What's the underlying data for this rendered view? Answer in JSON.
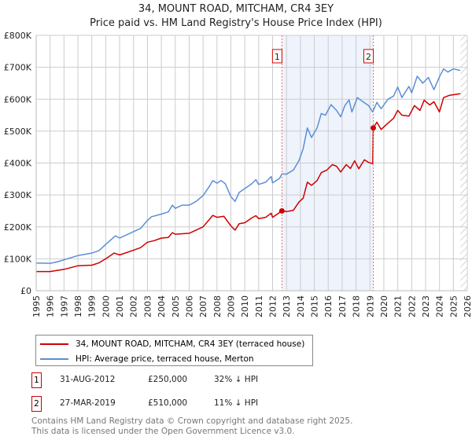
{
  "header": {
    "title": "34, MOUNT ROAD, MITCHAM, CR4 3EY",
    "subtitle": "Price paid vs. HM Land Registry's House Price Index (HPI)"
  },
  "colors": {
    "property": "#cc0000",
    "hpi": "#5b8fd6",
    "shade": "#eef3fc",
    "marker_line": "#ff6666"
  },
  "chart_data": {
    "type": "line",
    "title": "34, MOUNT ROAD, MITCHAM, CR4 3EY - Price paid vs. HM Land Registry's House Price Index (HPI)",
    "xlim": [
      1995,
      2026
    ],
    "ylim": [
      0,
      800000
    ],
    "x_ticks": [
      "1995",
      "1996",
      "1997",
      "1998",
      "1999",
      "2000",
      "2001",
      "2002",
      "2003",
      "2004",
      "2005",
      "2006",
      "2007",
      "2008",
      "2009",
      "2010",
      "2011",
      "2012",
      "2013",
      "2014",
      "2015",
      "2016",
      "2017",
      "2018",
      "2019",
      "2020",
      "2021",
      "2022",
      "2023",
      "2024",
      "2025",
      "2026"
    ],
    "y_ticks": [
      {
        "v": 0,
        "label": "£0"
      },
      {
        "v": 100000,
        "label": "£100K"
      },
      {
        "v": 200000,
        "label": "£200K"
      },
      {
        "v": 300000,
        "label": "£300K"
      },
      {
        "v": 400000,
        "label": "£400K"
      },
      {
        "v": 500000,
        "label": "£500K"
      },
      {
        "v": 600000,
        "label": "£600K"
      },
      {
        "v": 700000,
        "label": "£700K"
      },
      {
        "v": 800000,
        "label": "£800K"
      }
    ],
    "grid": true,
    "shaded_range": [
      2012.67,
      2019.24
    ],
    "hatched_from": 2025.5,
    "series": [
      {
        "name": "34, MOUNT ROAD, MITCHAM, CR4 3EY (terraced house)",
        "color": "#cc0000",
        "x": [
          1995,
          1996,
          1997,
          1998,
          1999,
          1999.5,
          2000,
          2000.6,
          2001,
          2002,
          2002.5,
          2003,
          2003.5,
          2004,
          2004.5,
          2004.8,
          2005,
          2006,
          2006.5,
          2007,
          2007.7,
          2008,
          2008.5,
          2009,
          2009.3,
          2009.6,
          2010,
          2010.5,
          2010.8,
          2011,
          2011.5,
          2011.9,
          2012,
          2012.67,
          2013,
          2013.5,
          2013.9,
          2014.2,
          2014.5,
          2014.8,
          2015.2,
          2015.5,
          2015.9,
          2016.3,
          2016.6,
          2016.9,
          2017.3,
          2017.6,
          2017.9,
          2018.2,
          2018.6,
          2018.9,
          2019.2,
          2019.24,
          2019.5,
          2019.8,
          2020.3,
          2020.7,
          2021,
          2021.3,
          2021.8,
          2022.2,
          2022.6,
          2022.9,
          2023.3,
          2023.6,
          2024,
          2024.3,
          2024.7,
          2025.5
        ],
        "y": [
          60,
          60,
          67,
          78,
          80,
          87,
          100,
          118,
          112,
          127,
          135,
          152,
          157,
          165,
          167,
          182,
          177,
          180,
          190,
          200,
          236,
          230,
          233,
          203,
          190,
          210,
          213,
          228,
          235,
          226,
          230,
          243,
          230,
          250,
          248,
          252,
          278,
          290,
          340,
          330,
          345,
          370,
          378,
          395,
          390,
          372,
          395,
          383,
          407,
          382,
          410,
          402,
          398,
          510,
          528,
          505,
          525,
          540,
          565,
          550,
          547,
          580,
          565,
          597,
          582,
          592,
          560,
          605,
          612,
          617
        ]
      },
      {
        "name": "HPI: Average price, terraced house, Merton",
        "color": "#5b8fd6",
        "x": [
          1995,
          1996,
          1996.5,
          1997,
          1998,
          1999,
          1999.5,
          2000,
          2000.7,
          2001,
          2001.5,
          2002,
          2002.5,
          2003,
          2003.3,
          2004,
          2004.5,
          2004.8,
          2005,
          2005.5,
          2006,
          2006.5,
          2007,
          2007.5,
          2007.7,
          2008,
          2008.3,
          2008.6,
          2009,
          2009.3,
          2009.6,
          2010,
          2010.5,
          2010.8,
          2011,
          2011.5,
          2011.9,
          2012,
          2012.5,
          2012.67,
          2013,
          2013.5,
          2013.9,
          2014.2,
          2014.5,
          2014.8,
          2015.2,
          2015.5,
          2015.8,
          2016.2,
          2016.6,
          2016.9,
          2017.2,
          2017.5,
          2017.7,
          2018.1,
          2018.5,
          2018.9,
          2019.2,
          2019.5,
          2019.8,
          2020.3,
          2020.7,
          2021,
          2021.3,
          2021.8,
          2022,
          2022.4,
          2022.8,
          2023.2,
          2023.6,
          2024,
          2024.3,
          2024.6,
          2025,
          2025.5
        ],
        "y": [
          87,
          86,
          90,
          97,
          110,
          118,
          125,
          145,
          172,
          165,
          175,
          185,
          195,
          220,
          232,
          240,
          247,
          268,
          258,
          268,
          268,
          280,
          298,
          330,
          345,
          337,
          345,
          335,
          295,
          280,
          308,
          320,
          335,
          348,
          333,
          340,
          358,
          338,
          352,
          366,
          365,
          378,
          408,
          445,
          510,
          480,
          510,
          555,
          550,
          583,
          565,
          545,
          580,
          598,
          560,
          605,
          592,
          580,
          560,
          590,
          570,
          600,
          610,
          638,
          605,
          640,
          620,
          672,
          650,
          668,
          630,
          670,
          695,
          685,
          695,
          690
        ]
      }
    ],
    "y_units": "thousands GBP",
    "annotations": [
      {
        "label": "1",
        "x": 2012.67,
        "y": 250
      },
      {
        "label": "2",
        "x": 2019.24,
        "y": 510
      }
    ],
    "legend_position": "below"
  },
  "legend": [
    {
      "label": "34, MOUNT ROAD, MITCHAM, CR4 3EY (terraced house)"
    },
    {
      "label": "HPI: Average price, terraced house, Merton"
    }
  ],
  "transactions": [
    {
      "num": "1",
      "date": "31-AUG-2012",
      "price": "£250,000",
      "diff": "32% ↓ HPI"
    },
    {
      "num": "2",
      "date": "27-MAR-2019",
      "price": "£510,000",
      "diff": "11% ↓ HPI"
    }
  ],
  "footer": {
    "line1": "Contains HM Land Registry data © Crown copyright and database right 2025.",
    "line2": "This data is licensed under the Open Government Licence v3.0."
  }
}
